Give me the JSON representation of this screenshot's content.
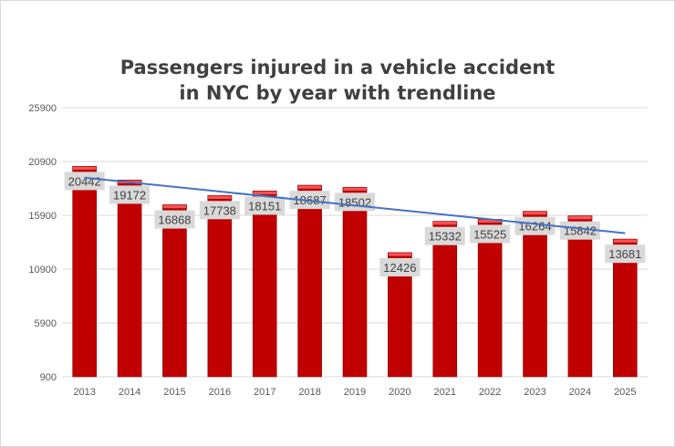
{
  "chart_data": {
    "type": "bar",
    "title_lines": [
      "Passengers injured in a vehicle accident",
      "in NYC by year with trendline"
    ],
    "categories": [
      "2013",
      "2014",
      "2015",
      "2016",
      "2017",
      "2018",
      "2019",
      "2020",
      "2021",
      "2022",
      "2023",
      "2024",
      "2025"
    ],
    "values": [
      20442,
      19172,
      16868,
      17738,
      18151,
      18687,
      18502,
      12426,
      15332,
      15525,
      16264,
      15842,
      13681
    ],
    "ylim": [
      900,
      25900
    ],
    "yticks": [
      900,
      5900,
      10900,
      15900,
      20900,
      25900
    ],
    "grid": true,
    "trendline": "linear",
    "data_labels": true,
    "colors": {
      "bar": "#c00000",
      "bar_cap": "#ff5050",
      "trendline": "#4472c4",
      "label_bg": "#d9d9d9",
      "grid": "#d9d9d9"
    }
  }
}
